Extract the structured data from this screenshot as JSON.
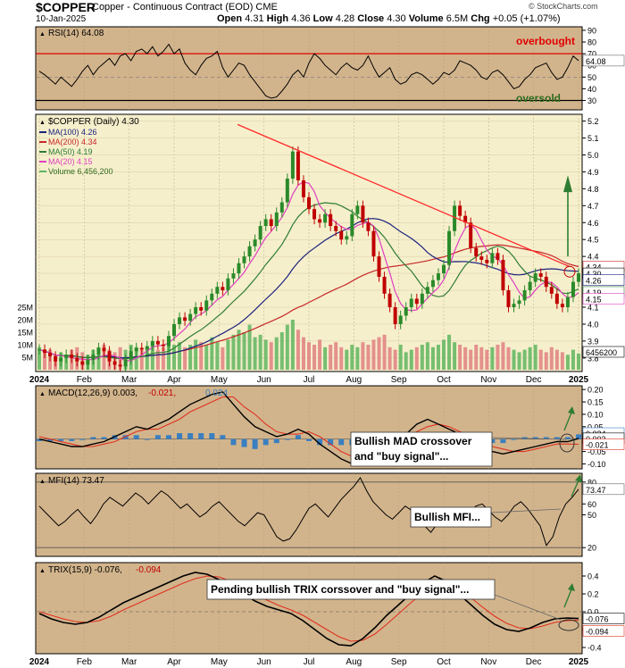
{
  "header": {
    "symbol": "$COPPER",
    "description": "Copper - Continuous Contract (EOD)",
    "exchange": "CME",
    "date": "10-Jan-2025",
    "open_label": "Open",
    "open": "4.31",
    "high_label": "High",
    "high": "4.36",
    "low_label": "Low",
    "low": "4.28",
    "close_label": "Close",
    "close": "4.30",
    "volume_label": "Volume",
    "volume": "6.5M",
    "chg_label": "Chg",
    "chg": "+0.05 (+1.07%)",
    "copyright": "© StockCharts.com"
  },
  "colors": {
    "panel_bg": "#f6efcc",
    "indicator_bg": "#d2b48c",
    "up": "#2a8a2a",
    "down": "#c00000",
    "ma100": "#1a237e",
    "ma200": "#c62828",
    "ma50": "#2e7d32",
    "ma20": "#e040c0",
    "trend": "#ff2a2a",
    "signal_arrow": "#2e7d32",
    "overbought": "#e00000",
    "oversold": "#2e6b1e"
  },
  "x_axis": {
    "months": [
      "2024",
      "Feb",
      "Mar",
      "Apr",
      "May",
      "Jun",
      "Jul",
      "Aug",
      "Sep",
      "Oct",
      "Nov",
      "Dec",
      "2025"
    ]
  },
  "chart_data": [
    {
      "type": "line",
      "panel": "rsi",
      "label": "RSI(14) 64.08",
      "yticks": [
        30,
        40,
        50,
        60,
        70,
        80,
        90
      ],
      "ylim": [
        22,
        93
      ],
      "levels": {
        "overbought": 70,
        "oversold": 30,
        "mid": 50
      },
      "last_value_tag": "64.08",
      "annotations": [
        "overbought",
        "oversold"
      ],
      "series": [
        {
          "values": [
            55,
            52,
            48,
            44,
            50,
            46,
            42,
            48,
            55,
            60,
            52,
            58,
            62,
            66,
            60,
            68,
            70,
            64,
            72,
            74,
            70,
            76,
            68,
            72,
            78,
            70,
            74,
            62,
            56,
            52,
            60,
            66,
            68,
            72,
            58,
            50,
            56,
            62,
            60,
            52,
            46,
            40,
            34,
            32,
            33,
            38,
            44,
            52,
            56,
            50,
            62,
            70,
            66,
            60,
            56,
            52,
            58,
            62,
            58,
            56,
            60,
            68,
            58,
            50,
            54,
            58,
            48,
            44,
            46,
            52,
            54,
            52,
            48,
            44,
            48,
            54,
            52,
            56,
            64,
            62,
            60,
            56,
            50,
            48,
            54,
            56,
            52,
            46,
            40,
            42,
            48,
            52,
            58,
            60,
            62,
            54,
            48,
            50,
            58,
            68,
            64
          ]
        }
      ]
    },
    {
      "type": "candlestick",
      "panel": "price",
      "label": "$COPPER (Daily) 4.30",
      "yticks": [
        3.8,
        3.9,
        4.0,
        4.1,
        4.2,
        4.3,
        4.4,
        4.5,
        4.6,
        4.7,
        4.8,
        4.9,
        5.0,
        5.1,
        5.2
      ],
      "ylim": [
        3.72,
        5.24
      ],
      "volume_ticks": [
        "5M",
        "10M",
        "15M",
        "20M",
        "25M"
      ],
      "price_tags": [
        "4.34",
        "4.30",
        "4.26",
        "4.19",
        "4.15",
        "6456200"
      ],
      "annotations": [
        "trend-line from May high to Jan",
        "circle at last bar",
        "up arrow"
      ],
      "legend": [
        {
          "name": "MA(100) 4.26"
        },
        {
          "name": "MA(200) 4.34"
        },
        {
          "name": "MA(50) 4.19"
        },
        {
          "name": "MA(20) 4.15"
        },
        {
          "name": "Volume 6,456,200"
        }
      ],
      "close": [
        3.85,
        3.83,
        3.81,
        3.78,
        3.8,
        3.82,
        3.8,
        3.78,
        3.76,
        3.79,
        3.82,
        3.86,
        3.84,
        3.78,
        3.76,
        3.75,
        3.79,
        3.84,
        3.86,
        3.85,
        3.87,
        3.9,
        3.88,
        3.87,
        3.93,
        4.0,
        4.04,
        4.02,
        4.06,
        4.1,
        4.08,
        4.14,
        4.18,
        4.22,
        4.2,
        4.27,
        4.3,
        4.36,
        4.4,
        4.46,
        4.5,
        4.58,
        4.62,
        4.58,
        4.66,
        4.72,
        4.86,
        5.02,
        4.85,
        4.75,
        4.68,
        4.62,
        4.6,
        4.65,
        4.58,
        4.55,
        4.5,
        4.52,
        4.65,
        4.7,
        4.6,
        4.55,
        4.4,
        4.28,
        4.18,
        4.1,
        4.0,
        4.05,
        4.1,
        4.15,
        4.12,
        4.18,
        4.22,
        4.26,
        4.3,
        4.35,
        4.55,
        4.7,
        4.64,
        4.6,
        4.45,
        4.4,
        4.38,
        4.36,
        4.42,
        4.38,
        4.2,
        4.1,
        4.12,
        4.14,
        4.2,
        4.25,
        4.3,
        4.28,
        4.22,
        4.18,
        4.12,
        4.1,
        4.16,
        4.25,
        4.3
      ],
      "volume": [
        9,
        7,
        8,
        6,
        7,
        6,
        8,
        9,
        7,
        6,
        8,
        9,
        10,
        8,
        7,
        9,
        8,
        10,
        9,
        8,
        9,
        11,
        8,
        9,
        12,
        10,
        11,
        9,
        10,
        12,
        11,
        10,
        13,
        11,
        9,
        12,
        14,
        16,
        15,
        18,
        13,
        14,
        12,
        11,
        13,
        15,
        18,
        20,
        16,
        13,
        11,
        10,
        12,
        9,
        10,
        11,
        9,
        8,
        10,
        9,
        11,
        10,
        12,
        13,
        14,
        9,
        8,
        10,
        7,
        8,
        9,
        10,
        11,
        9,
        10,
        12,
        14,
        11,
        10,
        9,
        8,
        10,
        9,
        8,
        9,
        10,
        11,
        9,
        8,
        7,
        8,
        9,
        10,
        8,
        7,
        9,
        8,
        7,
        6,
        8,
        6.5
      ]
    },
    {
      "type": "line",
      "panel": "macd",
      "label_main": "MACD(12,26,9) 0.003,",
      "label_signal": "-0.021,",
      "label_hist": "0.024",
      "yticks": [
        0.2,
        0.15,
        0.1,
        0.05,
        0.0,
        -0.05,
        -0.1
      ],
      "ylim": [
        -0.12,
        0.215
      ],
      "value_tags": [
        "0.024",
        "0.003",
        "-0.021"
      ],
      "annotations": [
        "Bullish MAD crossover",
        "and \"buy signal\"..."
      ],
      "series": [
        {
          "name": "MACD(12,26,9)",
          "values": [
            0.0,
            -0.01,
            -0.02,
            -0.03,
            -0.03,
            -0.02,
            -0.01,
            0.01,
            0.03,
            0.05,
            0.04,
            0.06,
            0.08,
            0.11,
            0.14,
            0.16,
            0.18,
            0.19,
            0.14,
            0.09,
            0.05,
            0.03,
            0.01,
            0.02,
            0.04,
            0.02,
            -0.02,
            -0.05,
            -0.08,
            -0.1,
            -0.08,
            -0.05,
            -0.02,
            0.0,
            0.02,
            0.06,
            0.08,
            0.06,
            0.04,
            0.02,
            -0.01,
            -0.03,
            -0.05,
            -0.06,
            -0.05,
            -0.04,
            -0.03,
            -0.02,
            -0.01,
            -0.01,
            0.003
          ]
        },
        {
          "name": "signal",
          "values": [
            0.01,
            0.0,
            -0.01,
            -0.02,
            -0.03,
            -0.03,
            -0.02,
            -0.01,
            0.01,
            0.03,
            0.04,
            0.04,
            0.06,
            0.08,
            0.11,
            0.13,
            0.15,
            0.17,
            0.17,
            0.13,
            0.1,
            0.06,
            0.03,
            0.02,
            0.02,
            0.03,
            0.01,
            -0.02,
            -0.05,
            -0.07,
            -0.08,
            -0.07,
            -0.04,
            -0.02,
            0.0,
            0.03,
            0.05,
            0.06,
            0.05,
            0.03,
            0.01,
            -0.01,
            -0.03,
            -0.04,
            -0.05,
            -0.05,
            -0.04,
            -0.03,
            -0.02,
            -0.02,
            -0.021
          ]
        }
      ]
    },
    {
      "type": "line",
      "panel": "mfi",
      "label": "MFI(14) 73.47",
      "yticks": [
        20,
        50,
        60,
        80
      ],
      "ylim": [
        12,
        88
      ],
      "levels": {
        "overbought": 80,
        "oversold": 20
      },
      "value_tag": "73.47",
      "annotations": [
        "Bullish MFI..."
      ],
      "series": [
        {
          "values": [
            58,
            52,
            46,
            40,
            44,
            50,
            55,
            48,
            42,
            50,
            60,
            66,
            62,
            58,
            64,
            70,
            66,
            60,
            66,
            72,
            68,
            62,
            56,
            60,
            54,
            48,
            52,
            58,
            62,
            56,
            50,
            44,
            40,
            46,
            52,
            50,
            40,
            30,
            26,
            28,
            36,
            46,
            56,
            60,
            54,
            48,
            56,
            64,
            70,
            76,
            84,
            72,
            62,
            56,
            50,
            46,
            52,
            58,
            54,
            48,
            40,
            34,
            42,
            52,
            56,
            50,
            46,
            52,
            58,
            60,
            54,
            48,
            44,
            50,
            58,
            62,
            56,
            48,
            40,
            22,
            30,
            48,
            60,
            66,
            73.47
          ]
        }
      ]
    },
    {
      "type": "line",
      "panel": "trix",
      "label_main": "TRIX(15,9) -0.076,",
      "label_signal": "-0.094",
      "yticks": [
        0.4,
        0.2,
        0.0,
        -0.2,
        -0.4
      ],
      "ylim": [
        -0.47,
        0.55
      ],
      "value_tags": [
        "-0.076",
        "-0.094"
      ],
      "annotations": [
        "Pending bullish TRIX corssover and \"buy signal\"..."
      ],
      "series": [
        {
          "name": "TRIX(15,9)",
          "values": [
            -0.02,
            -0.08,
            -0.12,
            -0.14,
            -0.12,
            -0.06,
            0.02,
            0.1,
            0.16,
            0.22,
            0.28,
            0.34,
            0.4,
            0.44,
            0.42,
            0.36,
            0.28,
            0.2,
            0.12,
            0.06,
            0.02,
            -0.02,
            -0.1,
            -0.2,
            -0.3,
            -0.37,
            -0.38,
            -0.3,
            -0.18,
            -0.04,
            0.08,
            0.2,
            0.32,
            0.4,
            0.34,
            0.2,
            0.08,
            -0.04,
            -0.14,
            -0.2,
            -0.22,
            -0.18,
            -0.12,
            -0.08,
            -0.07,
            -0.076
          ]
        },
        {
          "name": "signal",
          "values": [
            0.0,
            -0.04,
            -0.08,
            -0.11,
            -0.12,
            -0.1,
            -0.05,
            0.02,
            0.08,
            0.14,
            0.2,
            0.26,
            0.32,
            0.37,
            0.4,
            0.39,
            0.34,
            0.27,
            0.2,
            0.13,
            0.07,
            0.02,
            -0.04,
            -0.12,
            -0.2,
            -0.28,
            -0.33,
            -0.32,
            -0.25,
            -0.14,
            -0.02,
            0.1,
            0.21,
            0.3,
            0.33,
            0.27,
            0.16,
            0.05,
            -0.05,
            -0.13,
            -0.18,
            -0.19,
            -0.16,
            -0.12,
            -0.1,
            -0.094
          ]
        }
      ]
    }
  ]
}
